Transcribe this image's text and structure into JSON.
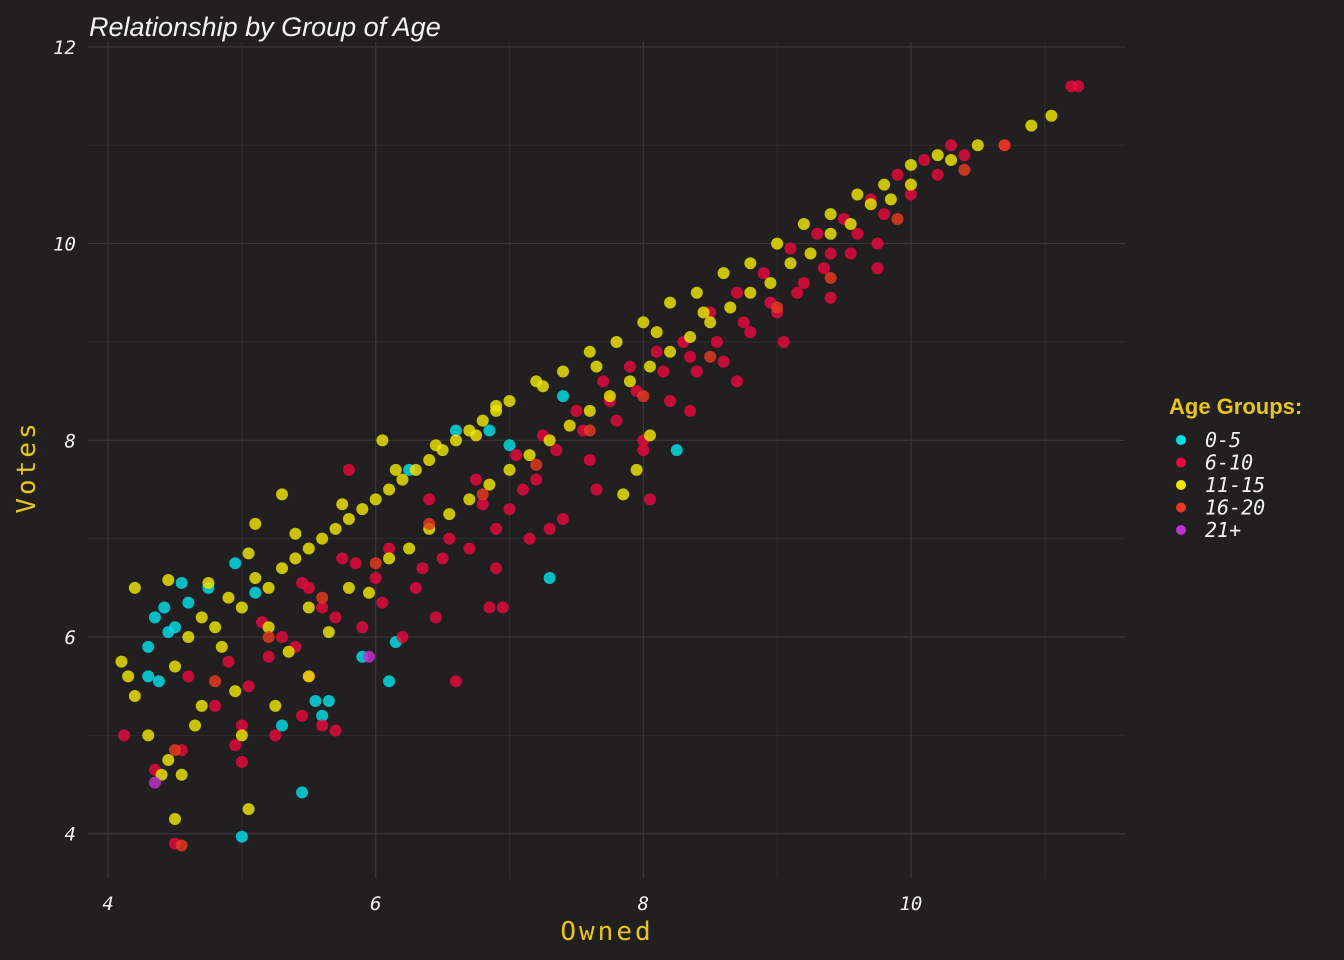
{
  "chart_data": {
    "type": "scatter",
    "title": "Relationship by Group of Age",
    "xlabel": "Owned",
    "ylabel": "Votes",
    "xlim": [
      3.85,
      11.6
    ],
    "ylim": [
      3.55,
      12.05
    ],
    "x_ticks": [
      4,
      6,
      8,
      10
    ],
    "y_ticks": [
      4,
      6,
      8,
      10,
      12
    ],
    "x_tick_labels": [
      "4",
      "6",
      "8",
      "10"
    ],
    "y_tick_labels": [
      "4",
      "6",
      "8",
      "10",
      "12"
    ],
    "grid": true,
    "legend": {
      "title": "Age Groups:",
      "placement": "right"
    },
    "series": [
      {
        "name": "0-5",
        "color": "#00e0e6",
        "points": [
          [
            4.3,
            5.9
          ],
          [
            4.35,
            6.2
          ],
          [
            4.42,
            6.3
          ],
          [
            4.45,
            6.05
          ],
          [
            4.38,
            5.55
          ],
          [
            4.5,
            6.1
          ],
          [
            4.6,
            6.35
          ],
          [
            4.75,
            6.5
          ],
          [
            4.95,
            6.75
          ],
          [
            5.1,
            6.45
          ],
          [
            4.3,
            5.6
          ],
          [
            5.0,
            3.97
          ],
          [
            5.45,
            4.42
          ],
          [
            5.55,
            5.35
          ],
          [
            5.6,
            5.2
          ],
          [
            5.65,
            5.35
          ],
          [
            5.3,
            5.1
          ],
          [
            6.1,
            5.55
          ],
          [
            6.15,
            5.95
          ],
          [
            6.25,
            7.7
          ],
          [
            6.6,
            8.1
          ],
          [
            6.85,
            8.1
          ],
          [
            7.3,
            6.6
          ],
          [
            7.4,
            8.45
          ],
          [
            8.25,
            7.9
          ],
          [
            7.0,
            7.95
          ],
          [
            5.9,
            5.8
          ],
          [
            4.55,
            6.55
          ]
        ]
      },
      {
        "name": "6-10",
        "color": "#e8083e",
        "points": [
          [
            4.12,
            5.0
          ],
          [
            4.35,
            4.65
          ],
          [
            4.5,
            3.9
          ],
          [
            4.55,
            4.85
          ],
          [
            4.8,
            5.3
          ],
          [
            5.0,
            5.1
          ],
          [
            5.05,
            5.5
          ],
          [
            5.25,
            5.0
          ],
          [
            5.45,
            5.2
          ],
          [
            5.5,
            5.6
          ],
          [
            5.7,
            5.05
          ],
          [
            5.3,
            6.0
          ],
          [
            5.6,
            6.3
          ],
          [
            5.9,
            6.1
          ],
          [
            6.0,
            6.6
          ],
          [
            6.2,
            6.0
          ],
          [
            6.3,
            6.5
          ],
          [
            6.5,
            6.8
          ],
          [
            6.7,
            6.9
          ],
          [
            6.9,
            7.1
          ],
          [
            7.0,
            7.3
          ],
          [
            7.2,
            7.6
          ],
          [
            7.4,
            7.2
          ],
          [
            7.6,
            7.8
          ],
          [
            7.8,
            8.2
          ],
          [
            8.0,
            7.9
          ],
          [
            8.05,
            7.4
          ],
          [
            8.2,
            8.4
          ],
          [
            8.4,
            8.7
          ],
          [
            8.6,
            8.8
          ],
          [
            8.8,
            9.1
          ],
          [
            9.0,
            9.3
          ],
          [
            9.2,
            9.6
          ],
          [
            9.4,
            9.9
          ],
          [
            9.6,
            10.1
          ],
          [
            9.8,
            10.3
          ],
          [
            10.0,
            10.5
          ],
          [
            10.2,
            10.7
          ],
          [
            10.4,
            10.9
          ],
          [
            10.7,
            11.0
          ],
          [
            11.2,
            11.6
          ],
          [
            11.25,
            11.6
          ],
          [
            6.85,
            6.3
          ],
          [
            6.95,
            6.3
          ],
          [
            5.8,
            7.7
          ],
          [
            7.15,
            7.0
          ],
          [
            5.0,
            4.73
          ],
          [
            4.95,
            4.9
          ],
          [
            5.6,
            5.1
          ],
          [
            6.6,
            5.55
          ],
          [
            5.75,
            6.8
          ],
          [
            6.4,
            7.4
          ],
          [
            6.75,
            7.6
          ],
          [
            7.05,
            7.85
          ],
          [
            7.25,
            8.05
          ],
          [
            7.5,
            8.3
          ],
          [
            7.7,
            8.6
          ],
          [
            7.9,
            8.75
          ],
          [
            8.1,
            8.9
          ],
          [
            8.3,
            9.0
          ],
          [
            8.5,
            9.3
          ],
          [
            8.7,
            9.5
          ],
          [
            8.9,
            9.7
          ],
          [
            9.1,
            9.95
          ],
          [
            9.3,
            10.1
          ],
          [
            9.5,
            10.25
          ],
          [
            9.7,
            10.45
          ],
          [
            9.9,
            10.7
          ],
          [
            10.1,
            10.85
          ],
          [
            10.3,
            11.0
          ],
          [
            5.4,
            5.9
          ],
          [
            5.7,
            6.2
          ],
          [
            6.05,
            6.35
          ],
          [
            6.35,
            6.7
          ],
          [
            6.55,
            7.0
          ],
          [
            6.8,
            7.35
          ],
          [
            7.1,
            7.5
          ],
          [
            7.35,
            7.9
          ],
          [
            7.55,
            8.1
          ],
          [
            7.75,
            8.4
          ],
          [
            7.95,
            8.5
          ],
          [
            8.15,
            8.7
          ],
          [
            8.35,
            8.85
          ],
          [
            8.55,
            9.0
          ],
          [
            8.75,
            9.2
          ],
          [
            8.95,
            9.4
          ],
          [
            9.15,
            9.5
          ],
          [
            9.35,
            9.75
          ],
          [
            9.55,
            9.9
          ],
          [
            9.75,
            10.0
          ],
          [
            6.1,
            6.9
          ],
          [
            5.2,
            5.8
          ],
          [
            5.5,
            6.5
          ],
          [
            6.45,
            6.2
          ],
          [
            6.9,
            6.7
          ],
          [
            7.3,
            7.1
          ],
          [
            7.65,
            7.5
          ],
          [
            8.0,
            8.0
          ],
          [
            8.35,
            8.3
          ],
          [
            8.7,
            8.6
          ],
          [
            9.05,
            9.0
          ],
          [
            9.4,
            9.45
          ],
          [
            9.75,
            9.75
          ],
          [
            4.6,
            5.6
          ],
          [
            4.9,
            5.75
          ],
          [
            5.15,
            6.15
          ],
          [
            5.45,
            6.55
          ],
          [
            5.85,
            6.75
          ]
        ]
      },
      {
        "name": "11-15",
        "color": "#eee600",
        "points": [
          [
            4.2,
            6.5
          ],
          [
            4.15,
            5.6
          ],
          [
            4.2,
            5.4
          ],
          [
            4.3,
            5.0
          ],
          [
            4.4,
            4.6
          ],
          [
            4.45,
            4.75
          ],
          [
            4.5,
            4.15
          ],
          [
            4.55,
            4.6
          ],
          [
            5.05,
            4.25
          ],
          [
            4.5,
            5.7
          ],
          [
            4.6,
            6.0
          ],
          [
            4.7,
            6.2
          ],
          [
            4.8,
            6.1
          ],
          [
            4.9,
            6.4
          ],
          [
            5.0,
            6.3
          ],
          [
            5.1,
            6.6
          ],
          [
            5.2,
            6.5
          ],
          [
            5.3,
            6.7
          ],
          [
            5.4,
            6.8
          ],
          [
            5.5,
            6.9
          ],
          [
            5.6,
            7.0
          ],
          [
            5.7,
            7.1
          ],
          [
            5.8,
            7.2
          ],
          [
            5.9,
            7.3
          ],
          [
            6.0,
            7.4
          ],
          [
            6.1,
            7.5
          ],
          [
            6.2,
            7.6
          ],
          [
            6.3,
            7.7
          ],
          [
            6.4,
            7.8
          ],
          [
            6.5,
            7.9
          ],
          [
            6.6,
            8.0
          ],
          [
            6.7,
            8.1
          ],
          [
            6.8,
            8.2
          ],
          [
            6.9,
            8.3
          ],
          [
            7.0,
            8.4
          ],
          [
            7.2,
            8.6
          ],
          [
            7.4,
            8.7
          ],
          [
            7.6,
            8.9
          ],
          [
            7.8,
            9.0
          ],
          [
            8.0,
            9.2
          ],
          [
            8.2,
            9.4
          ],
          [
            8.4,
            9.5
          ],
          [
            8.6,
            9.7
          ],
          [
            8.8,
            9.8
          ],
          [
            9.0,
            10.0
          ],
          [
            9.2,
            10.2
          ],
          [
            9.4,
            10.3
          ],
          [
            9.6,
            10.5
          ],
          [
            9.8,
            10.6
          ],
          [
            10.0,
            10.8
          ],
          [
            10.2,
            10.9
          ],
          [
            10.5,
            11.0
          ],
          [
            10.9,
            11.2
          ],
          [
            11.05,
            11.3
          ],
          [
            5.3,
            7.45
          ],
          [
            5.1,
            7.15
          ],
          [
            6.05,
            8.0
          ],
          [
            6.75,
            8.05
          ],
          [
            7.85,
            7.45
          ],
          [
            8.05,
            8.05
          ],
          [
            7.95,
            7.7
          ],
          [
            4.45,
            6.58
          ],
          [
            4.1,
            5.75
          ],
          [
            4.7,
            5.3
          ],
          [
            5.0,
            5.0
          ],
          [
            5.25,
            5.3
          ],
          [
            5.5,
            5.6
          ],
          [
            4.85,
            5.9
          ],
          [
            5.2,
            6.1
          ],
          [
            5.5,
            6.3
          ],
          [
            5.8,
            6.5
          ],
          [
            6.1,
            6.8
          ],
          [
            6.4,
            7.1
          ],
          [
            6.7,
            7.4
          ],
          [
            7.0,
            7.7
          ],
          [
            7.3,
            8.0
          ],
          [
            7.6,
            8.3
          ],
          [
            7.9,
            8.6
          ],
          [
            8.2,
            8.9
          ],
          [
            8.5,
            9.2
          ],
          [
            8.8,
            9.5
          ],
          [
            9.1,
            9.8
          ],
          [
            9.4,
            10.1
          ],
          [
            9.7,
            10.4
          ],
          [
            10.0,
            10.6
          ],
          [
            10.3,
            10.85
          ],
          [
            4.65,
            5.1
          ],
          [
            4.95,
            5.45
          ],
          [
            5.35,
            5.85
          ],
          [
            5.65,
            6.05
          ],
          [
            5.95,
            6.45
          ],
          [
            6.25,
            6.9
          ],
          [
            6.55,
            7.25
          ],
          [
            6.85,
            7.55
          ],
          [
            7.15,
            7.85
          ],
          [
            7.45,
            8.15
          ],
          [
            7.75,
            8.45
          ],
          [
            8.05,
            8.75
          ],
          [
            8.35,
            9.05
          ],
          [
            8.65,
            9.35
          ],
          [
            8.95,
            9.6
          ],
          [
            9.25,
            9.9
          ],
          [
            9.55,
            10.2
          ],
          [
            9.85,
            10.45
          ],
          [
            4.75,
            6.55
          ],
          [
            5.05,
            6.85
          ],
          [
            5.4,
            7.05
          ],
          [
            5.75,
            7.35
          ],
          [
            6.15,
            7.7
          ],
          [
            6.45,
            7.95
          ],
          [
            6.9,
            8.35
          ],
          [
            7.25,
            8.55
          ],
          [
            7.65,
            8.75
          ],
          [
            8.1,
            9.1
          ],
          [
            8.45,
            9.3
          ]
        ]
      },
      {
        "name": "16-20",
        "color": "#e83a1e",
        "points": [
          [
            4.55,
            3.88
          ],
          [
            4.5,
            4.85
          ],
          [
            4.8,
            5.55
          ],
          [
            5.2,
            6.0
          ],
          [
            5.6,
            6.4
          ],
          [
            6.0,
            6.75
          ],
          [
            6.4,
            7.15
          ],
          [
            6.8,
            7.45
          ],
          [
            7.2,
            7.75
          ],
          [
            7.6,
            8.1
          ],
          [
            8.0,
            8.45
          ],
          [
            8.5,
            8.85
          ],
          [
            9.0,
            9.35
          ],
          [
            9.4,
            9.65
          ],
          [
            9.9,
            10.25
          ],
          [
            10.4,
            10.75
          ],
          [
            10.7,
            11.0
          ]
        ]
      },
      {
        "name": "21+",
        "color": "#c32fd0",
        "points": [
          [
            4.35,
            4.52
          ],
          [
            5.95,
            5.8
          ]
        ]
      }
    ]
  }
}
